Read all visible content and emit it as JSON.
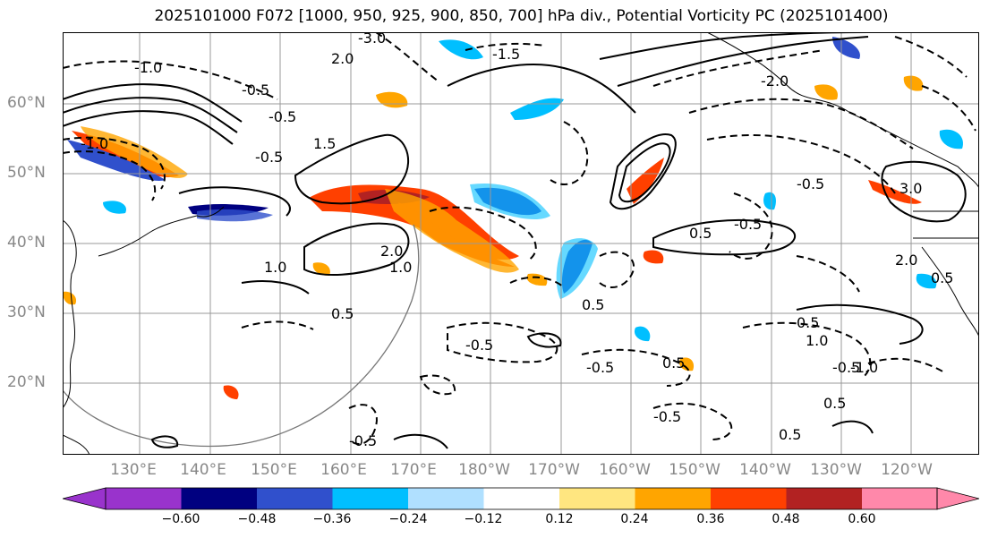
{
  "title": "2025101000 F072 [1000, 950, 925, 900, 850, 700] hPa div., Potential Vorticity PC (2025101400)",
  "lat_labels": [
    "60°N",
    "50°N",
    "40°N",
    "30°N",
    "20°N"
  ],
  "lon_labels": [
    "130°E",
    "140°E",
    "150°E",
    "160°E",
    "170°E",
    "180°W",
    "170°W",
    "160°W",
    "150°W",
    "140°W",
    "130°W",
    "120°W"
  ],
  "colorbar": {
    "colors": [
      "#9933cc",
      "#000080",
      "#3050cc",
      "#00bfff",
      "#b0e0ff",
      "#ffffff",
      "#ffe680",
      "#ffa500",
      "#ff4000",
      "#b22222",
      "#ff88aa"
    ],
    "tick_labels": [
      "−0.60",
      "−0.48",
      "−0.36",
      "−0.24",
      "−0.12",
      "0.12",
      "0.24",
      "0.36",
      "0.48",
      "0.60"
    ]
  },
  "contour_labels": [
    "-3.0",
    "-1.0",
    "-0.5",
    "0.5",
    "1.0",
    "1.5",
    "2.0",
    "3.0",
    "-1.5",
    "-2.0"
  ]
}
